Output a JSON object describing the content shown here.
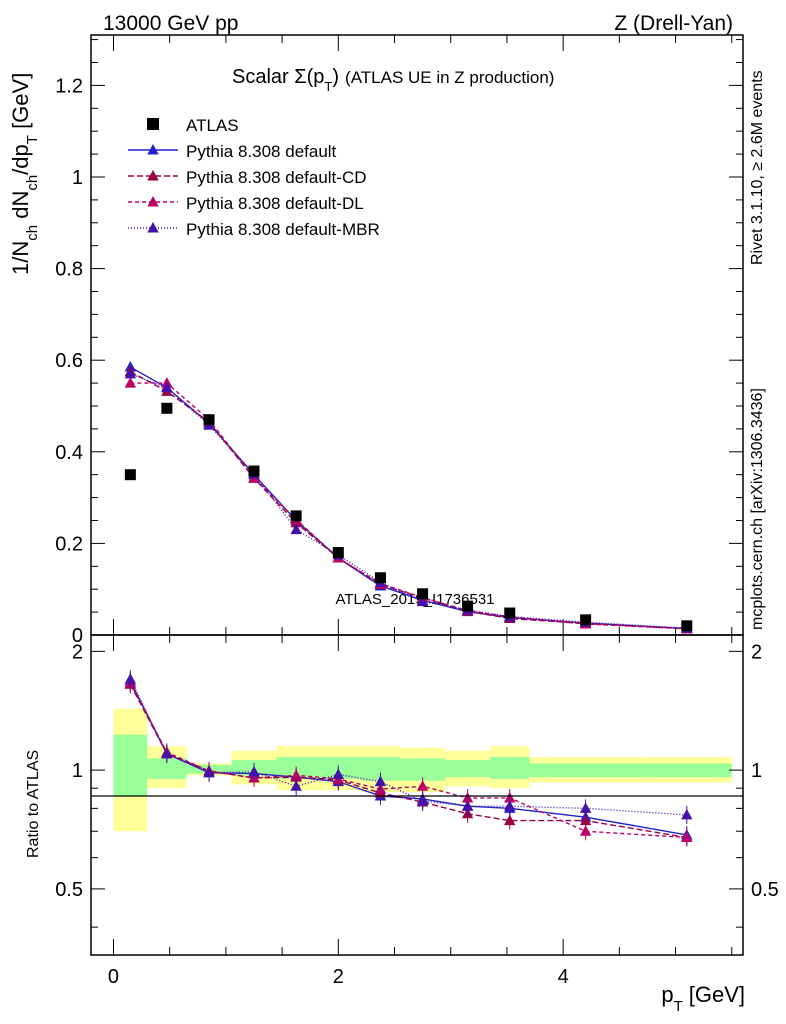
{
  "header": {
    "left": "13000 GeV pp",
    "right": "Z (Drell-Yan)"
  },
  "side_labels": {
    "rivet": "Rivet 3.1.10, ≥ 2.6M events",
    "mcplots": "mcplots.cern.ch [arXiv:1306.3436]"
  },
  "watermark": "ATLAS_2019_I1736531",
  "chart_data": {
    "type": "scatter",
    "title": "Scalar Σ(p_T) (ATLAS UE in Z production)",
    "title_main": "Scalar Σ(p",
    "title_sub": "T",
    "title_close": ")",
    "title_tail": "(ATLAS UE in Z production)",
    "xlabel": "p_T [GeV]",
    "xlabel_main": "p",
    "xlabel_sub": "T",
    "xlabel_tail": "[GeV]",
    "ylabel": "1/N_ch dN_ch/dp_T [GeV]",
    "ratio_ylabel": "Ratio to ATLAS",
    "xlim": [
      -0.2,
      5.6
    ],
    "ylim": [
      0,
      1.31
    ],
    "ratio_ylim": [
      0.34,
      2.2
    ],
    "x_ticks": [
      {
        "value": 0,
        "label": "0"
      },
      {
        "value": 2,
        "label": "2"
      },
      {
        "value": 4,
        "label": "4"
      }
    ],
    "y_ticks": [
      {
        "value": 0,
        "label": "0"
      },
      {
        "value": 0.2,
        "label": "0.2"
      },
      {
        "value": 0.4,
        "label": "0.4"
      },
      {
        "value": 0.6,
        "label": "0.6"
      },
      {
        "value": 0.8,
        "label": "0.8"
      },
      {
        "value": 1.0,
        "label": "1"
      },
      {
        "value": 1.2,
        "label": "1.2"
      }
    ],
    "ratio_ticks": [
      {
        "value": 0.5,
        "label": "0.5"
      },
      {
        "value": 1,
        "label": "1"
      },
      {
        "value": 2,
        "label": "2"
      }
    ],
    "data_name": "ATLAS",
    "data_x": [
      0.15,
      0.475,
      0.85,
      1.25,
      1.625,
      2.0,
      2.375,
      2.75,
      3.15,
      3.525,
      4.2,
      5.1
    ],
    "data_y": [
      0.35,
      0.495,
      0.47,
      0.358,
      0.26,
      0.18,
      0.125,
      0.09,
      0.063,
      0.048,
      0.033,
      0.02
    ],
    "band_edges": [
      0.0,
      0.3,
      0.65,
      1.05,
      1.45,
      1.8,
      2.2,
      2.55,
      2.95,
      3.35,
      3.7,
      4.7,
      5.5
    ],
    "band_inner": [
      [
        0.86,
        1.23
      ],
      [
        0.95,
        1.07
      ],
      [
        0.98,
        1.03
      ],
      [
        0.97,
        1.06
      ],
      [
        0.95,
        1.08
      ],
      [
        0.95,
        1.08
      ],
      [
        0.94,
        1.08
      ],
      [
        0.94,
        1.07
      ],
      [
        0.96,
        1.06
      ],
      [
        0.95,
        1.08
      ],
      [
        0.96,
        1.04
      ],
      [
        0.96,
        1.04
      ]
    ],
    "band_outer": [
      [
        0.7,
        1.43
      ],
      [
        0.9,
        1.15
      ],
      [
        0.97,
        1.04
      ],
      [
        0.92,
        1.12
      ],
      [
        0.89,
        1.15
      ],
      [
        0.89,
        1.15
      ],
      [
        0.88,
        1.15
      ],
      [
        0.88,
        1.14
      ],
      [
        0.91,
        1.12
      ],
      [
        0.9,
        1.15
      ],
      [
        0.93,
        1.08
      ],
      [
        0.93,
        1.08
      ]
    ],
    "series": [
      {
        "name": "Pythia 8.308 default",
        "color": "#2222cc",
        "dash": "",
        "y": [
          0.585,
          0.54,
          0.462,
          0.35,
          0.25,
          0.168,
          0.107,
          0.076,
          0.051,
          0.038,
          0.026,
          0.014
        ],
        "ratio": [
          1.68,
          1.1,
          0.985,
          0.98,
          0.96,
          0.935,
          0.86,
          0.845,
          0.81,
          0.8,
          0.76,
          0.685
        ]
      },
      {
        "name": "Pythia 8.308 default-CD",
        "color": "#990044",
        "dash": "6,3",
        "y": [
          0.575,
          0.532,
          0.465,
          0.342,
          0.245,
          0.168,
          0.11,
          0.081,
          0.052,
          0.036,
          0.025,
          0.0135
        ],
        "ratio": [
          1.65,
          1.1,
          0.995,
          0.955,
          0.96,
          0.945,
          0.875,
          0.83,
          0.775,
          0.745,
          0.745,
          0.675
        ]
      },
      {
        "name": "Pythia 8.308 default-DL",
        "color": "#bb0066",
        "dash": "4,3",
        "y": [
          0.55,
          0.55,
          0.47,
          0.343,
          0.252,
          0.168,
          0.112,
          0.082,
          0.053,
          0.04,
          0.024,
          0.0135
        ],
        "ratio": [
          1.66,
          1.11,
          0.995,
          0.955,
          0.97,
          0.95,
          0.895,
          0.91,
          0.85,
          0.85,
          0.7,
          0.675
        ]
      },
      {
        "name": "Pythia 8.308 default-MBR",
        "color": "#4411aa",
        "dash": "1,2",
        "y": [
          0.57,
          0.54,
          0.458,
          0.352,
          0.23,
          0.175,
          0.115,
          0.073,
          0.055,
          0.04,
          0.028,
          0.015
        ],
        "ratio": [
          1.7,
          1.1,
          0.985,
          0.99,
          0.91,
          0.975,
          0.935,
          0.835,
          0.81,
          0.81,
          0.8,
          0.77
        ]
      }
    ]
  }
}
